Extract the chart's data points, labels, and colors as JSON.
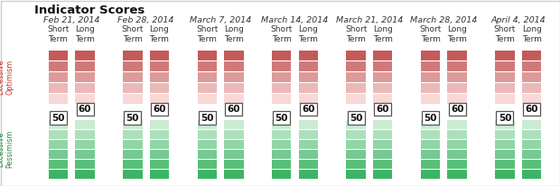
{
  "title": "Indicator Scores",
  "dates": [
    "Feb 21, 2014",
    "Feb 28, 2014",
    "March 7, 2014",
    "March 14, 2014",
    "March 21, 2014",
    "March 28, 2014",
    "April 4, 2014"
  ],
  "short_term_value": "50",
  "long_term_value": "60",
  "y_label_top": "Excessive\nOptimism",
  "y_label_bottom": "Excessive\nPessimism",
  "n_red_segments": 5,
  "n_green_segments": 6,
  "background_color": "#ffffff",
  "red_dark": [
    196,
    90,
    90
  ],
  "red_light": [
    248,
    215,
    215
  ],
  "green_light": [
    200,
    235,
    210
  ],
  "green_dark": [
    60,
    180,
    100
  ],
  "border_color": "#cccccc",
  "text_color": "#333333",
  "title_color": "#111111",
  "red_label_color": "#c0392b",
  "green_label_color": "#2e8b4a",
  "title_fontsize": 9.5,
  "date_fontsize": 6.8,
  "col_label_fontsize": 6.5,
  "value_fontsize": 7.5,
  "ylabel_fontsize": 5.8,
  "fig_width": 6.2,
  "fig_height": 2.06,
  "dpi": 100
}
